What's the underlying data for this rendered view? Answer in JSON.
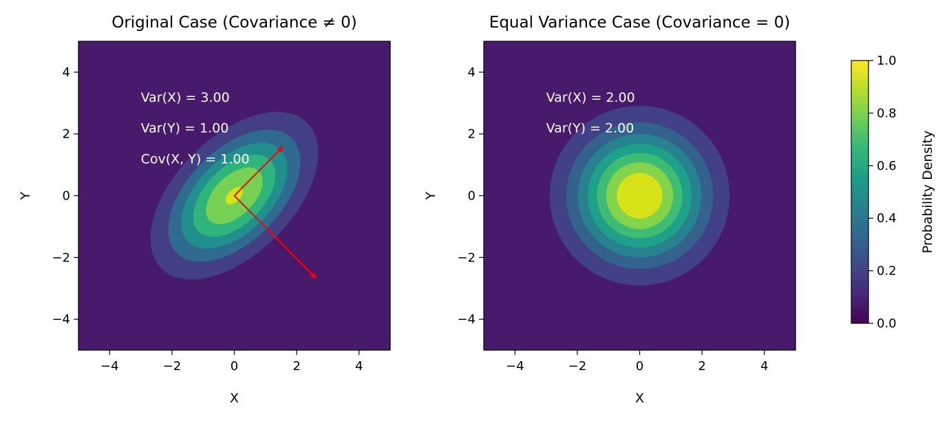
{
  "chart_data": [
    {
      "type": "heatmap",
      "subtype": "filled-contour",
      "title": "Original Case (Covariance ≠ 0)",
      "xlabel": "X",
      "ylabel": "Y",
      "xlim": [
        -5,
        5
      ],
      "ylim": [
        -5,
        5
      ],
      "xticks": [
        "−4",
        "−2",
        "0",
        "2",
        "4"
      ],
      "yticks": [
        "−4",
        "−2",
        "0",
        "2",
        "4"
      ],
      "xtick_values": [
        -4,
        -2,
        0,
        2,
        4
      ],
      "ytick_values": [
        -4,
        -2,
        0,
        2,
        4
      ],
      "background_color": "#481a6c",
      "bands": [
        {
          "color": "#433f85",
          "x_extent": 2.69
        },
        {
          "color": "#2f6b8e",
          "x_extent": 2.12
        },
        {
          "color": "#21908d",
          "x_extent": 1.7
        },
        {
          "color": "#2fb47c",
          "x_extent": 1.32
        },
        {
          "color": "#75d054",
          "x_extent": 0.91
        },
        {
          "color": "#d2e21b",
          "x_extent": 0.28
        }
      ],
      "annotations": [
        {
          "text": "Var(X) = 3.00",
          "x": -3,
          "y": 3
        },
        {
          "text": "Var(Y) = 1.00",
          "x": -3,
          "y": 2
        },
        {
          "text": "Cov(X, Y) = 1.00",
          "x": -3,
          "y": 1
        }
      ],
      "arrows": [
        {
          "from": [
            0,
            0
          ],
          "to": [
            1.55,
            1.58
          ],
          "color": "#ff0000"
        },
        {
          "from": [
            0,
            0
          ],
          "to": [
            2.62,
            -2.67
          ],
          "color": "#ff0000"
        }
      ]
    },
    {
      "type": "heatmap",
      "subtype": "filled-contour",
      "title": "Equal Variance Case (Covariance = 0)",
      "xlabel": "X",
      "ylabel": "Y",
      "xlim": [
        -5,
        5
      ],
      "ylim": [
        -5,
        5
      ],
      "xticks": [
        "−4",
        "−2",
        "0",
        "2",
        "4"
      ],
      "yticks": [
        "−4",
        "−2",
        "0",
        "2",
        "4"
      ],
      "xtick_values": [
        -4,
        -2,
        0,
        2,
        4
      ],
      "ytick_values": [
        -4,
        -2,
        0,
        2,
        4
      ],
      "variance": 2.0,
      "background_color": "#481a6c",
      "bands": [
        {
          "level": 0.125,
          "color": "#424086"
        },
        {
          "level": 0.25,
          "color": "#33638d"
        },
        {
          "level": 0.375,
          "color": "#26828e"
        },
        {
          "level": 0.5,
          "color": "#1fa088"
        },
        {
          "level": 0.625,
          "color": "#3fbc73"
        },
        {
          "level": 0.75,
          "color": "#84d44b"
        },
        {
          "level": 0.875,
          "color": "#d8e219"
        }
      ],
      "annotations": [
        {
          "text": "Var(X) = 2.00",
          "x": -3,
          "y": 3
        },
        {
          "text": "Var(Y) = 2.00",
          "x": -3,
          "y": 2
        }
      ]
    }
  ],
  "colorbar": {
    "label": "Probability Density",
    "range": [
      0,
      1
    ],
    "ticks": [
      "0.0",
      "0.2",
      "0.4",
      "0.6",
      "0.8",
      "1.0"
    ],
    "tick_values": [
      0,
      0.2,
      0.4,
      0.6,
      0.8,
      1.0
    ],
    "colormap": [
      "#440154",
      "#482878",
      "#3e4989",
      "#31688e",
      "#26828e",
      "#1f9e89",
      "#35b779",
      "#6ece58",
      "#b5de2b",
      "#fde725"
    ]
  }
}
